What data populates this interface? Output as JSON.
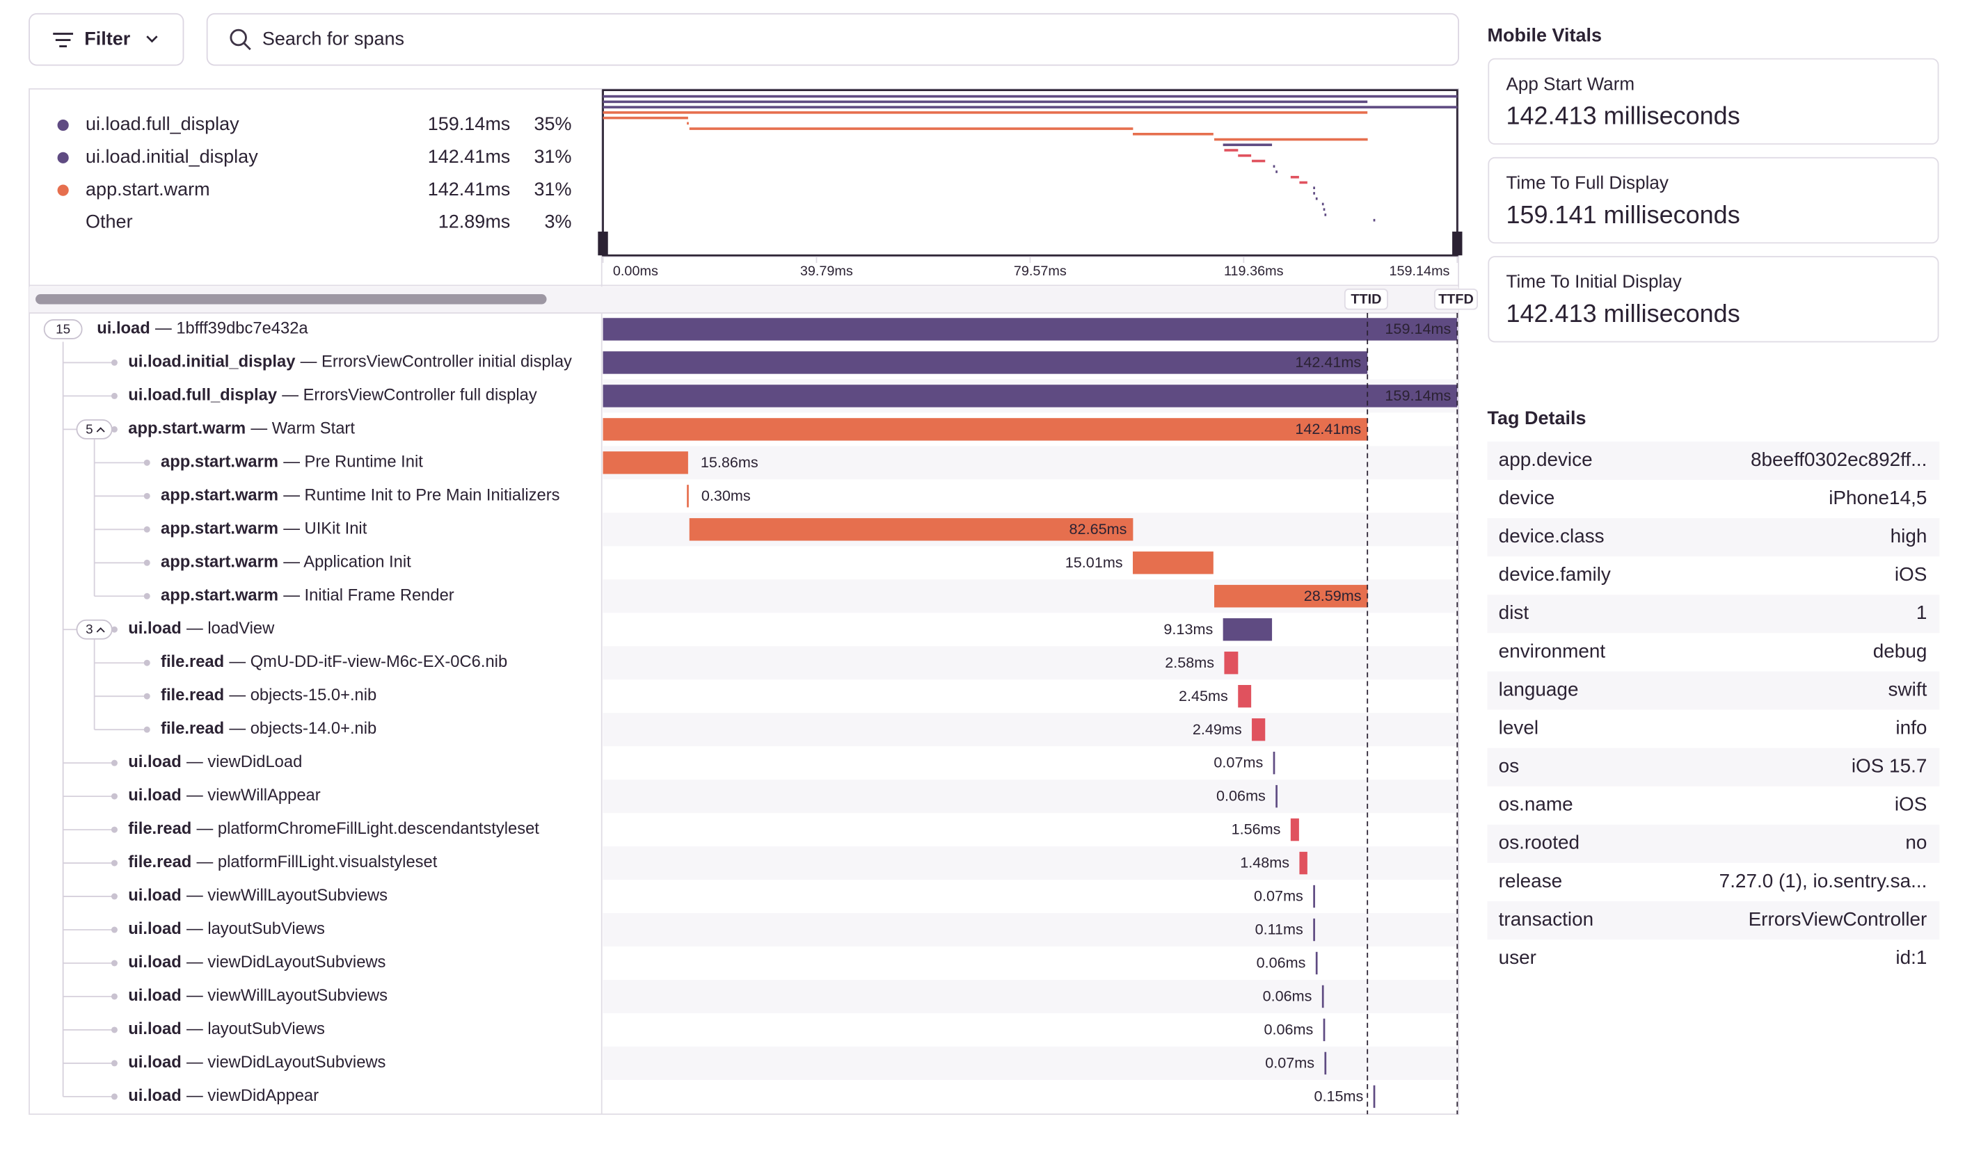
{
  "toolbar": {
    "filter": "Filter",
    "search_placeholder": "Search for spans"
  },
  "ops_breakdown": [
    {
      "name": "ui.load.full_display",
      "duration": "159.14ms",
      "percent": "35%"
    },
    {
      "name": "ui.load.initial_display",
      "duration": "142.41ms",
      "percent": "31%"
    },
    {
      "name": "app.start.warm",
      "duration": "142.41ms",
      "percent": "31%"
    },
    {
      "name": "Other",
      "duration": "12.89ms",
      "percent": "3%"
    }
  ],
  "minimap_axis": [
    "0.00ms",
    "39.79ms",
    "79.57ms",
    "119.36ms",
    "159.14ms"
  ],
  "markers": [
    "TTID",
    "TTFD"
  ],
  "spans": [
    {
      "op": "ui.load",
      "description": "— 1bfff39dbc7e432a",
      "duration": {
        "value": 159.14,
        "label": "159.14ms"
      },
      "children": 15
    },
    {
      "op": "ui.load.initial_display",
      "description": "— ErrorsViewController initial display",
      "duration": {
        "value": 142.41,
        "label": "142.41ms"
      }
    },
    {
      "op": "ui.load.full_display",
      "description": "— ErrorsViewController full display",
      "duration": {
        "value": 159.14,
        "label": "159.14ms"
      }
    },
    {
      "op": "app.start.warm",
      "description": "— Warm Start",
      "duration": {
        "value": 142.41,
        "label": "142.41ms"
      },
      "children": 5
    },
    {
      "op": "app.start.warm",
      "description": "— Pre Runtime Init",
      "duration": {
        "value": 15.86,
        "label": "15.86ms"
      }
    },
    {
      "op": "app.start.warm",
      "description": "— Runtime Init to Pre Main Initializers",
      "duration": {
        "value": 0.3,
        "label": "0.30ms"
      }
    },
    {
      "op": "app.start.warm",
      "description": "— UIKit Init",
      "duration": {
        "value": 82.65,
        "label": "82.65ms"
      }
    },
    {
      "op": "app.start.warm",
      "description": "— Application Init",
      "duration": {
        "value": 15.01,
        "label": "15.01ms"
      }
    },
    {
      "op": "app.start.warm",
      "description": "— Initial Frame Render",
      "duration": {
        "value": 28.59,
        "label": "28.59ms"
      }
    },
    {
      "op": "ui.load",
      "description": "— loadView",
      "duration": {
        "value": 9.13,
        "label": "9.13ms"
      },
      "children": 3
    },
    {
      "op": "file.read",
      "description": "— QmU-DD-itF-view-M6c-EX-0C6.nib",
      "duration": {
        "value": 2.58,
        "label": "2.58ms"
      }
    },
    {
      "op": "file.read",
      "description": "— objects-15.0+.nib",
      "duration": {
        "value": 2.45,
        "label": "2.45ms"
      }
    },
    {
      "op": "file.read",
      "description": "— objects-14.0+.nib",
      "duration": {
        "value": 2.49,
        "label": "2.49ms"
      }
    },
    {
      "op": "ui.load",
      "description": "— viewDidLoad",
      "duration": {
        "value": 0.07,
        "label": "0.07ms"
      }
    },
    {
      "op": "ui.load",
      "description": "— viewWillAppear",
      "duration": {
        "value": 0.06,
        "label": "0.06ms"
      }
    },
    {
      "op": "file.read",
      "description": "— platformChromeFillLight.descendantstyleset",
      "duration": {
        "value": 1.56,
        "label": "1.56ms"
      }
    },
    {
      "op": "file.read",
      "description": "— platformFillLight.visualstyleset",
      "duration": {
        "value": 1.48,
        "label": "1.48ms"
      }
    },
    {
      "op": "ui.load",
      "description": "— viewWillLayoutSubviews",
      "duration": {
        "value": 0.07,
        "label": "0.07ms"
      }
    },
    {
      "op": "ui.load",
      "description": "— layoutSubViews",
      "duration": {
        "value": 0.11,
        "label": "0.11ms"
      }
    },
    {
      "op": "ui.load",
      "description": "— viewDidLayoutSubviews",
      "duration": {
        "value": 0.06,
        "label": "0.06ms"
      }
    },
    {
      "op": "ui.load",
      "description": "— viewWillLayoutSubviews",
      "duration": {
        "value": 0.06,
        "label": "0.06ms"
      }
    },
    {
      "op": "ui.load",
      "description": "— layoutSubViews",
      "duration": {
        "value": 0.06,
        "label": "0.06ms"
      }
    },
    {
      "op": "ui.load",
      "description": "— viewDidLayoutSubviews",
      "duration": {
        "value": 0.07,
        "label": "0.07ms"
      }
    },
    {
      "op": "ui.load",
      "description": "— viewDidAppear",
      "duration": {
        "value": 0.15,
        "label": "0.15ms"
      }
    }
  ],
  "mobile_vitals": {
    "title": "Mobile Vitals",
    "items": [
      {
        "label": "App Start Warm",
        "value": "142.413 milliseconds"
      },
      {
        "label": "Time To Full Display",
        "value": "159.141 milliseconds"
      },
      {
        "label": "Time To Initial Display",
        "value": "142.413 milliseconds"
      }
    ]
  },
  "tag_details": {
    "title": "Tag Details",
    "rows": [
      [
        "app.device",
        "8beeff0302ec892ff..."
      ],
      [
        "device",
        "iPhone14,5"
      ],
      [
        "device.class",
        "high"
      ],
      [
        "device.family",
        "iOS"
      ],
      [
        "dist",
        "1"
      ],
      [
        "environment",
        "debug"
      ],
      [
        "language",
        "swift"
      ],
      [
        "level",
        "info"
      ],
      [
        "os",
        "iOS 15.7"
      ],
      [
        "os.name",
        "iOS"
      ],
      [
        "os.rooted",
        "no"
      ],
      [
        "release",
        "7.27.0 (1), io.sentry.sa..."
      ],
      [
        "transaction",
        "ErrorsViewController"
      ],
      [
        "user",
        "id:1"
      ]
    ]
  }
}
